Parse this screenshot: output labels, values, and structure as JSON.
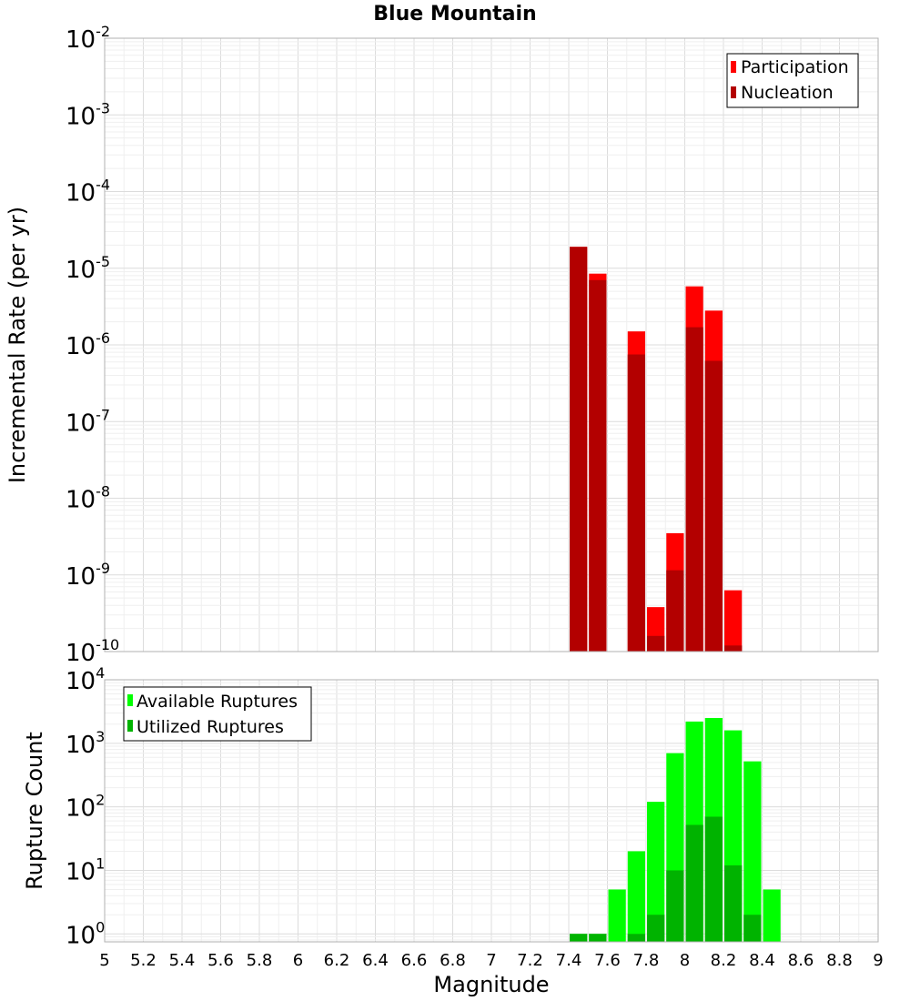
{
  "chart_data": [
    {
      "type": "bar",
      "title": "Blue Mountain",
      "xlabel": "Magnitude",
      "ylabel": "Incremental Rate (per yr)",
      "yscale": "log",
      "xlim": [
        5,
        9
      ],
      "ylim": [
        1e-10,
        0.01
      ],
      "y_ticks": [
        {
          "base": "10",
          "exp": "-2"
        },
        {
          "base": "10",
          "exp": "-3"
        },
        {
          "base": "10",
          "exp": "-4"
        },
        {
          "base": "10",
          "exp": "-5"
        },
        {
          "base": "10",
          "exp": "-6"
        },
        {
          "base": "10",
          "exp": "-7"
        },
        {
          "base": "10",
          "exp": "-8"
        },
        {
          "base": "10",
          "exp": "-9"
        },
        {
          "base": "10",
          "exp": "-10"
        }
      ],
      "legend": {
        "position": "top-right",
        "entries": [
          "Participation",
          "Nucleation"
        ]
      },
      "series": [
        {
          "name": "Participation",
          "color": "#ff0000",
          "x": [
            7.45,
            7.55,
            7.75,
            7.85,
            7.95,
            8.05,
            8.15,
            8.25
          ],
          "values": [
            1.9e-05,
            8.5e-06,
            1.5e-06,
            3.8e-10,
            3.5e-09,
            5.8e-06,
            2.8e-06,
            6.3e-10
          ]
        },
        {
          "name": "Nucleation",
          "color": "#b30000",
          "x": [
            7.45,
            7.55,
            7.75,
            7.85,
            7.95,
            8.05,
            8.15,
            8.25
          ],
          "values": [
            1.9e-05,
            7e-06,
            7.5e-07,
            1.6e-10,
            1.15e-09,
            1.7e-06,
            6.2e-07,
            1.2e-10
          ]
        }
      ]
    },
    {
      "type": "bar",
      "title": "",
      "xlabel": "Magnitude",
      "ylabel": "Rupture Count",
      "yscale": "log",
      "xlim": [
        5,
        9
      ],
      "ylim": [
        0.75,
        10000
      ],
      "y_ticks": [
        {
          "base": "10",
          "exp": "4",
          "value": 10000
        },
        {
          "base": "10",
          "exp": "3",
          "value": 1000
        },
        {
          "base": "10",
          "exp": "2",
          "value": 100
        },
        {
          "base": "10",
          "exp": "1",
          "value": 10
        },
        {
          "base": "10",
          "exp": "0",
          "value": 1
        }
      ],
      "x_ticks": [
        "5",
        "5.2",
        "5.4",
        "5.6",
        "5.8",
        "6",
        "6.2",
        "6.4",
        "6.6",
        "6.8",
        "7",
        "7.2",
        "7.4",
        "7.6",
        "7.8",
        "8",
        "8.2",
        "8.4",
        "8.6",
        "8.8",
        "9"
      ],
      "legend": {
        "position": "top-left",
        "entries": [
          "Available Ruptures",
          "Utilized Ruptures"
        ]
      },
      "series": [
        {
          "name": "Available Ruptures",
          "color": "#00ff00",
          "x": [
            7.45,
            7.55,
            7.65,
            7.75,
            7.85,
            7.95,
            8.05,
            8.15,
            8.25,
            8.35,
            8.45
          ],
          "values": [
            1,
            1,
            5,
            20,
            120,
            700,
            2200,
            2500,
            1600,
            520,
            5
          ]
        },
        {
          "name": "Utilized Ruptures",
          "color": "#00b300",
          "x": [
            7.45,
            7.55,
            7.75,
            7.85,
            7.95,
            8.05,
            8.15,
            8.25,
            8.35
          ],
          "values": [
            1,
            1,
            1,
            2,
            10,
            52,
            70,
            12,
            2
          ]
        }
      ]
    }
  ]
}
